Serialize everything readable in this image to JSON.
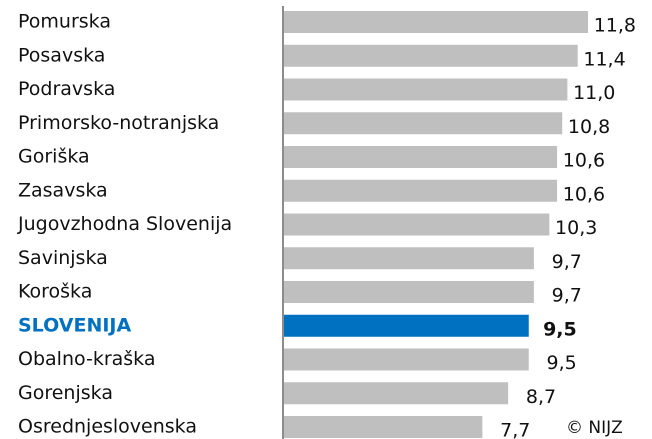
{
  "chart_data": {
    "type": "bar",
    "orientation": "horizontal",
    "categories": [
      "Pomurska",
      "Posavska",
      "Podravska",
      "Primorsko-notranjska",
      "Goriška",
      "Zasavska",
      "Jugovzhodna Slovenija",
      "Savinjska",
      "Koroška",
      "SLOVENIJA",
      "Obalno-kraška",
      "Gorenjska",
      "Osrednjeslovenska"
    ],
    "values": [
      11.8,
      11.4,
      11.0,
      10.8,
      10.6,
      10.6,
      10.3,
      9.7,
      9.7,
      9.5,
      9.5,
      8.7,
      7.7
    ],
    "value_labels": [
      "11,8",
      "11,4",
      "11,0",
      "10,8",
      "10,6",
      "10,6",
      "10,3",
      "9,7",
      "9,7",
      "9,5",
      "9,5",
      "8,7",
      "7,7"
    ],
    "colors": [
      "#bfbfbf",
      "#bfbfbf",
      "#bfbfbf",
      "#bfbfbf",
      "#bfbfbf",
      "#bfbfbf",
      "#bfbfbf",
      "#bfbfbf",
      "#bfbfbf",
      "#0070c0",
      "#bfbfbf",
      "#bfbfbf",
      "#bfbfbf"
    ],
    "annotation": "© NIJZ"
  }
}
